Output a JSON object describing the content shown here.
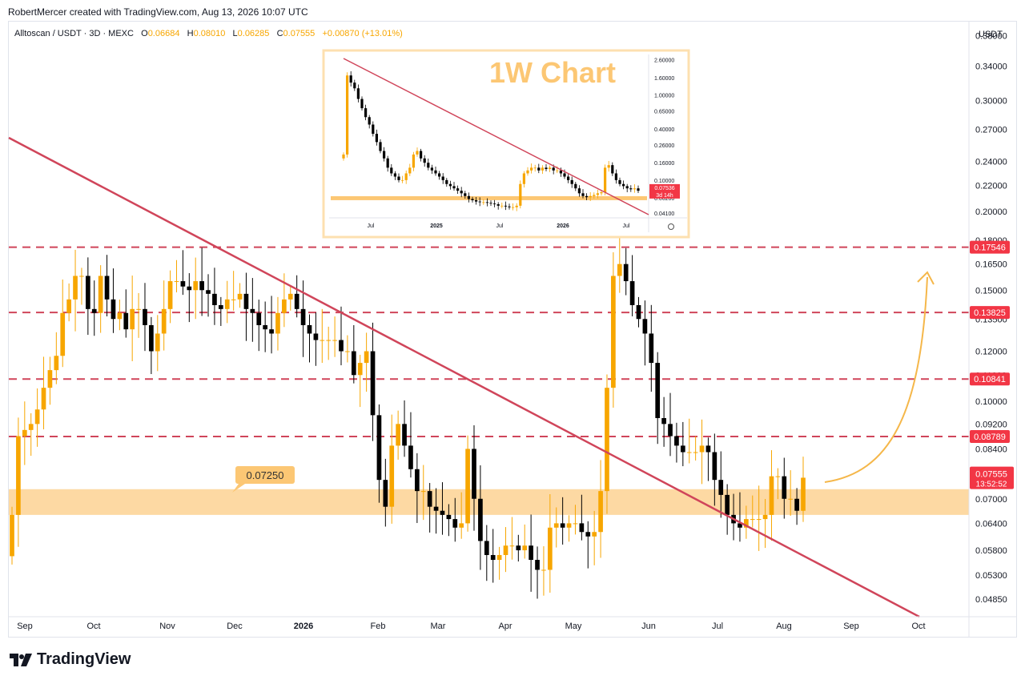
{
  "header": {
    "attribution": "RobertMercer created with TradingView.com, Aug 13, 2026 10:07 UTC"
  },
  "legend": {
    "symbol": "Alltoscan / USDT · 3D · MEXC",
    "o_label": "O",
    "o": "0.06684",
    "h_label": "H",
    "h": "0.08010",
    "l_label": "L",
    "l": "0.06285",
    "c_label": "C",
    "c": "0.07555",
    "change": "+0.00870 (+13.01%)"
  },
  "footer": {
    "brand": "TradingView"
  },
  "colors": {
    "up": "#f7a600",
    "down": "#000000",
    "trendline": "#d0455a",
    "resistance": "#d0455a",
    "zone": "#fdd9a3",
    "label_bg": "#f23645"
  },
  "chart_data": [
    {
      "type": "candlestick",
      "title": "",
      "xlabel": "",
      "ylabel": "",
      "y_scale": "log",
      "currency_label": "USDT",
      "ylim": [
        0.0455,
        0.4
      ],
      "y_ticks": [
        "0.38000",
        "0.34000",
        "0.30000",
        "0.27000",
        "0.24000",
        "0.22000",
        "0.20000",
        "0.18000",
        "0.16500",
        "0.15000",
        "0.13500",
        "0.12000",
        "0.11000",
        "0.10000",
        "0.09200",
        "0.08400",
        "0.07700",
        "0.07000",
        "0.06400",
        "0.05800",
        "0.05300",
        "0.04850"
      ],
      "x_ticks": [
        "Sep",
        "Oct",
        "Nov",
        "Dec",
        "2026",
        "Feb",
        "Mar",
        "Apr",
        "May",
        "Jun",
        "Jul",
        "Aug",
        "Sep",
        "Oct"
      ],
      "closes": [
        0.066,
        0.088,
        0.09,
        0.092,
        0.097,
        0.105,
        0.112,
        0.118,
        0.138,
        0.145,
        0.158,
        0.158,
        0.14,
        0.138,
        0.158,
        0.145,
        0.135,
        0.138,
        0.13,
        0.14,
        0.14,
        0.132,
        0.12,
        0.128,
        0.14,
        0.155,
        0.155,
        0.152,
        0.15,
        0.155,
        0.15,
        0.148,
        0.142,
        0.14,
        0.145,
        0.145,
        0.148,
        0.14,
        0.138,
        0.132,
        0.13,
        0.128,
        0.138,
        0.145,
        0.148,
        0.14,
        0.132,
        0.128,
        0.125,
        0.125,
        0.125,
        0.125,
        0.12,
        0.12,
        0.11,
        0.115,
        0.12,
        0.095,
        0.075,
        0.068,
        0.085,
        0.092,
        0.085,
        0.078,
        0.072,
        0.072,
        0.068,
        0.067,
        0.066,
        0.065,
        0.063,
        0.064,
        0.084,
        0.07,
        0.06,
        0.057,
        0.056,
        0.057,
        0.059,
        0.059,
        0.058,
        0.059,
        0.056,
        0.054,
        0.054,
        0.063,
        0.064,
        0.063,
        0.064,
        0.064,
        0.062,
        0.061,
        0.062,
        0.072,
        0.105,
        0.158,
        0.165,
        0.155,
        0.142,
        0.135,
        0.128,
        0.115,
        0.094,
        0.092,
        0.088,
        0.085,
        0.083,
        0.083,
        0.083,
        0.085,
        0.083,
        0.075,
        0.071,
        0.066,
        0.064,
        0.063,
        0.065,
        0.065,
        0.065,
        0.066,
        0.076,
        0.076,
        0.07,
        0.07,
        0.067,
        0.0756
      ],
      "levels": [
        {
          "value": 0.17546,
          "label": "0.17546"
        },
        {
          "value": 0.13825,
          "label": "0.13825"
        },
        {
          "value": 0.10841,
          "label": "0.10841"
        },
        {
          "value": 0.08789,
          "label": "0.08789"
        }
      ],
      "last_price": {
        "label": "0.07555",
        "countdown": "13:52:52"
      },
      "support_zone": {
        "low": 0.066,
        "high": 0.0725,
        "label": "0.07250"
      },
      "trendline": {
        "from": {
          "x": "Aug 2025",
          "y": 0.28
        },
        "to": {
          "x": "Oct 2026",
          "y": 0.046
        }
      },
      "annotation": "curved arrow up from current price toward 0.16500"
    },
    {
      "type": "candlestick",
      "title": "1W Chart",
      "y_scale": "log",
      "y_ticks": [
        "2.60000",
        "1.60000",
        "1.00000",
        "0.65000",
        "0.40000",
        "0.26000",
        "0.16000",
        "0.10000",
        "0.06200",
        "0.04100"
      ],
      "x_ticks": [
        "Jul",
        "2025",
        "Jul",
        "2026",
        "Jul"
      ],
      "last_price": {
        "label": "0.07536",
        "countdown": "3d 14h"
      },
      "closes": [
        0.2,
        1.7,
        1.4,
        1.2,
        0.9,
        0.7,
        0.55,
        0.45,
        0.35,
        0.28,
        0.22,
        0.18,
        0.14,
        0.12,
        0.11,
        0.1,
        0.1,
        0.12,
        0.14,
        0.2,
        0.22,
        0.18,
        0.16,
        0.14,
        0.13,
        0.12,
        0.11,
        0.1,
        0.09,
        0.085,
        0.08,
        0.075,
        0.07,
        0.065,
        0.06,
        0.058,
        0.056,
        0.055,
        0.055,
        0.054,
        0.053,
        0.052,
        0.05,
        0.05,
        0.049,
        0.048,
        0.048,
        0.05,
        0.09,
        0.12,
        0.13,
        0.14,
        0.14,
        0.13,
        0.14,
        0.135,
        0.14,
        0.13,
        0.13,
        0.12,
        0.11,
        0.1,
        0.09,
        0.08,
        0.07,
        0.065,
        0.063,
        0.065,
        0.067,
        0.07,
        0.072,
        0.14,
        0.15,
        0.12,
        0.1,
        0.09,
        0.085,
        0.08,
        0.078,
        0.08,
        0.075
      ]
    }
  ]
}
